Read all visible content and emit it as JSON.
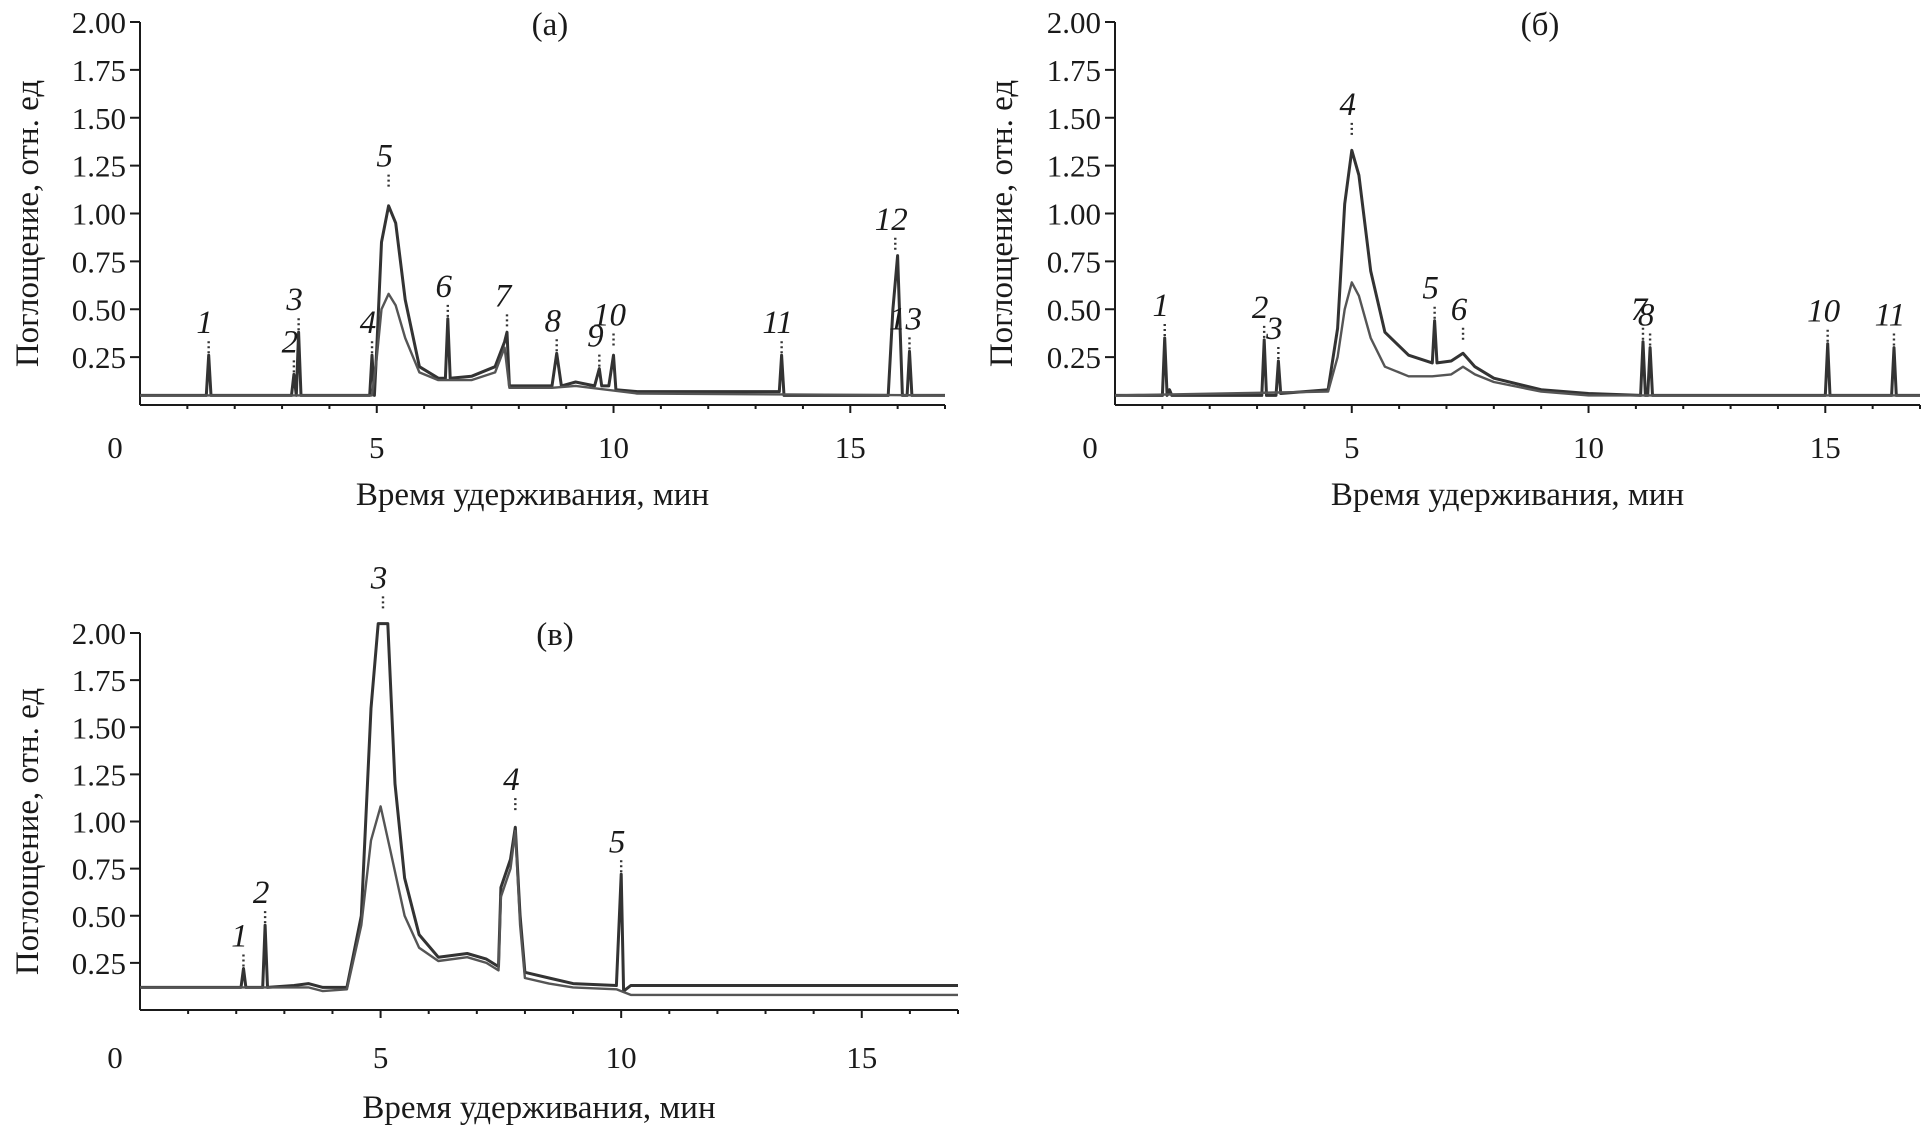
{
  "chart_data": [
    {
      "type": "line",
      "panel_label": "(а)",
      "xlabel": "Время удерживания, мин",
      "ylabel": "Поглощение, отн. ед",
      "xlim": [
        0,
        17
      ],
      "ylim": [
        0,
        2.0
      ],
      "x_ticks": [
        "0",
        "5",
        "10",
        "15"
      ],
      "y_ticks": [
        "0.25",
        "0.50",
        "0.75",
        "1.00",
        "1.25",
        "1.50",
        "1.75",
        "2.00"
      ],
      "grid": false,
      "baseline": 0.05,
      "series": [
        {
          "x": [
            0.0,
            1.4,
            1.45,
            1.5,
            3.2,
            3.25,
            3.3,
            3.35,
            3.4,
            4.85,
            4.9,
            4.95,
            5.0,
            5.1,
            5.25,
            5.4,
            5.6,
            5.9,
            6.3,
            6.45,
            6.5,
            6.55,
            7.0,
            7.5,
            7.7,
            7.75,
            7.8,
            8.7,
            8.8,
            8.9,
            9.2,
            9.6,
            9.7,
            9.75,
            9.9,
            10.0,
            10.05,
            10.5,
            13.5,
            13.55,
            13.6,
            15.8,
            15.9,
            16.0,
            16.1,
            16.2,
            16.25,
            16.3,
            17.0
          ],
          "y": [
            0.05,
            0.05,
            0.26,
            0.05,
            0.05,
            0.16,
            0.05,
            0.38,
            0.05,
            0.05,
            0.26,
            0.05,
            0.3,
            0.85,
            1.04,
            0.95,
            0.55,
            0.2,
            0.14,
            0.14,
            0.45,
            0.14,
            0.15,
            0.2,
            0.33,
            0.38,
            0.1,
            0.1,
            0.27,
            0.1,
            0.12,
            0.1,
            0.19,
            0.1,
            0.1,
            0.26,
            0.08,
            0.07,
            0.07,
            0.26,
            0.05,
            0.05,
            0.5,
            0.78,
            0.05,
            0.05,
            0.28,
            0.05,
            0.05
          ]
        },
        {
          "x": [
            0.0,
            4.9,
            5.0,
            5.1,
            5.25,
            5.4,
            5.6,
            5.9,
            6.3,
            7.0,
            7.5,
            7.7,
            7.8,
            8.7,
            9.2,
            10.5,
            17.0
          ],
          "y": [
            0.05,
            0.05,
            0.25,
            0.5,
            0.58,
            0.52,
            0.35,
            0.17,
            0.13,
            0.13,
            0.17,
            0.3,
            0.09,
            0.09,
            0.1,
            0.06,
            0.05
          ]
        }
      ],
      "peak_labels": [
        {
          "text": "1",
          "x": 1.45,
          "y": 0.26
        },
        {
          "text": "2",
          "x": 3.25,
          "y": 0.16
        },
        {
          "text": "3",
          "x": 3.35,
          "y": 0.38
        },
        {
          "text": "4",
          "x": 4.9,
          "y": 0.26
        },
        {
          "text": "5",
          "x": 5.25,
          "y": 1.13
        },
        {
          "text": "6",
          "x": 6.5,
          "y": 0.45
        },
        {
          "text": "7",
          "x": 7.75,
          "y": 0.4
        },
        {
          "text": "8",
          "x": 8.8,
          "y": 0.27
        },
        {
          "text": "9",
          "x": 9.7,
          "y": 0.19
        },
        {
          "text": "10",
          "x": 10.0,
          "y": 0.3
        },
        {
          "text": "11",
          "x": 13.55,
          "y": 0.26
        },
        {
          "text": "12",
          "x": 15.95,
          "y": 0.8
        },
        {
          "text": "13",
          "x": 16.25,
          "y": 0.28
        }
      ]
    },
    {
      "type": "line",
      "panel_label": "(б)",
      "xlabel": "Время удерживания, мин",
      "ylabel": "Поглощение, отн. ед",
      "xlim": [
        0,
        17
      ],
      "ylim": [
        0,
        2.0
      ],
      "x_ticks": [
        "0",
        "5",
        "10",
        "15"
      ],
      "y_ticks": [
        "0.25",
        "0.50",
        "0.75",
        "1.00",
        "1.25",
        "1.50",
        "1.75",
        "2.00"
      ],
      "grid": false,
      "series": [
        {
          "x": [
            0.0,
            1.0,
            1.05,
            1.1,
            1.15,
            1.2,
            3.1,
            3.15,
            3.2,
            3.4,
            3.45,
            3.5,
            4.5,
            4.7,
            4.85,
            5.0,
            5.15,
            5.4,
            5.7,
            6.2,
            6.7,
            6.75,
            6.8,
            7.1,
            7.35,
            7.6,
            8.0,
            9.0,
            10.0,
            11.1,
            11.15,
            11.2,
            11.25,
            11.3,
            11.35,
            15.0,
            15.05,
            15.1,
            16.4,
            16.45,
            16.5,
            17.0
          ],
          "y": [
            0.05,
            0.05,
            0.35,
            0.05,
            0.08,
            0.05,
            0.05,
            0.34,
            0.05,
            0.05,
            0.23,
            0.06,
            0.08,
            0.4,
            1.05,
            1.33,
            1.2,
            0.7,
            0.38,
            0.26,
            0.22,
            0.44,
            0.22,
            0.23,
            0.27,
            0.2,
            0.14,
            0.08,
            0.06,
            0.05,
            0.33,
            0.05,
            0.05,
            0.3,
            0.05,
            0.05,
            0.32,
            0.05,
            0.05,
            0.3,
            0.05,
            0.05
          ]
        },
        {
          "x": [
            0.0,
            4.5,
            4.7,
            4.85,
            5.0,
            5.15,
            5.4,
            5.7,
            6.2,
            6.7,
            7.1,
            7.35,
            7.6,
            8.0,
            9.0,
            10.0,
            17.0
          ],
          "y": [
            0.05,
            0.07,
            0.25,
            0.5,
            0.64,
            0.57,
            0.35,
            0.2,
            0.15,
            0.15,
            0.16,
            0.2,
            0.16,
            0.12,
            0.07,
            0.05,
            0.05
          ]
        }
      ],
      "peak_labels": [
        {
          "text": "1",
          "x": 1.05,
          "y": 0.35
        },
        {
          "text": "2",
          "x": 3.15,
          "y": 0.34
        },
        {
          "text": "3",
          "x": 3.45,
          "y": 0.23
        },
        {
          "text": "4",
          "x": 5.0,
          "y": 1.4
        },
        {
          "text": "5",
          "x": 6.75,
          "y": 0.44
        },
        {
          "text": "6",
          "x": 7.35,
          "y": 0.33
        },
        {
          "text": "7",
          "x": 11.15,
          "y": 0.33
        },
        {
          "text": "8",
          "x": 11.3,
          "y": 0.3
        },
        {
          "text": "10",
          "x": 15.05,
          "y": 0.32
        },
        {
          "text": "11",
          "x": 16.45,
          "y": 0.3
        }
      ]
    },
    {
      "type": "line",
      "panel_label": "(в)",
      "xlabel": "Время удерживания, мин",
      "ylabel": "Поглощение, отн. ед",
      "xlim": [
        0,
        17
      ],
      "ylim": [
        0,
        2.0
      ],
      "x_ticks": [
        "0",
        "5",
        "10",
        "15"
      ],
      "y_ticks": [
        "0.25",
        "0.50",
        "0.75",
        "1.00",
        "1.25",
        "1.50",
        "1.75",
        "2.00"
      ],
      "grid": false,
      "series": [
        {
          "x": [
            0.0,
            2.1,
            2.15,
            2.2,
            2.55,
            2.6,
            2.65,
            3.2,
            3.5,
            3.8,
            4.3,
            4.6,
            4.8,
            4.95,
            5.15,
            5.3,
            5.5,
            5.8,
            6.2,
            6.8,
            7.2,
            7.45,
            7.5,
            7.7,
            7.8,
            7.9,
            8.0,
            8.5,
            9.0,
            9.9,
            10.0,
            10.05,
            10.2,
            17.0
          ],
          "y": [
            0.12,
            0.12,
            0.22,
            0.12,
            0.12,
            0.45,
            0.12,
            0.13,
            0.14,
            0.12,
            0.12,
            0.5,
            1.6,
            2.05,
            2.05,
            1.2,
            0.7,
            0.4,
            0.28,
            0.3,
            0.27,
            0.23,
            0.65,
            0.8,
            0.97,
            0.5,
            0.2,
            0.17,
            0.14,
            0.13,
            0.72,
            0.1,
            0.13,
            0.13
          ]
        },
        {
          "x": [
            0.0,
            3.5,
            3.8,
            4.3,
            4.6,
            4.8,
            5.0,
            5.2,
            5.5,
            5.8,
            6.2,
            6.8,
            7.2,
            7.45,
            7.5,
            7.7,
            7.8,
            7.9,
            8.0,
            8.5,
            9.0,
            9.9,
            10.2,
            17.0
          ],
          "y": [
            0.12,
            0.12,
            0.1,
            0.11,
            0.45,
            0.9,
            1.08,
            0.85,
            0.5,
            0.33,
            0.26,
            0.28,
            0.25,
            0.21,
            0.6,
            0.75,
            0.95,
            0.45,
            0.17,
            0.14,
            0.12,
            0.11,
            0.08,
            0.08
          ]
        }
      ],
      "peak_labels": [
        {
          "text": "1",
          "x": 2.15,
          "y": 0.22
        },
        {
          "text": "2",
          "x": 2.6,
          "y": 0.45
        },
        {
          "text": "3",
          "x": 5.05,
          "y": 2.12
        },
        {
          "text": "4",
          "x": 7.8,
          "y": 1.05
        },
        {
          "text": "5",
          "x": 10.0,
          "y": 0.72
        }
      ]
    }
  ]
}
